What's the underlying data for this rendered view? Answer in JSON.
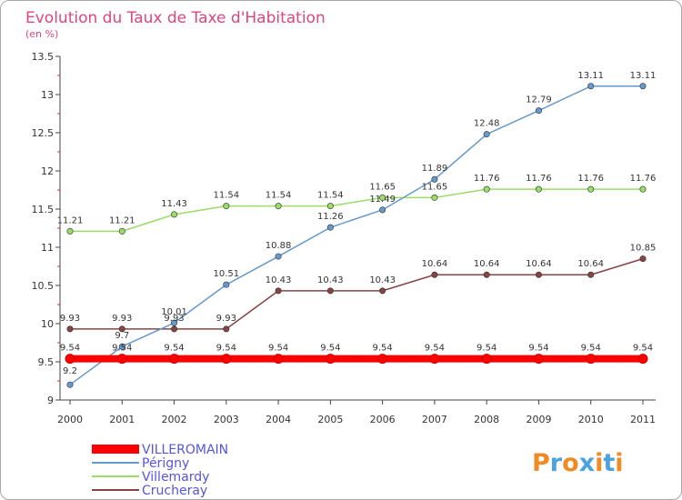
{
  "chart_data": {
    "type": "line",
    "title": "Evolution du Taux de Taxe d'Habitation",
    "subtitle": "(en %)",
    "x": [
      "2000",
      "2001",
      "2002",
      "2003",
      "2004",
      "2005",
      "2006",
      "2007",
      "2008",
      "2009",
      "2010",
      "2011"
    ],
    "ylim": [
      9,
      13.5
    ],
    "yticks": [
      "9",
      "9.5",
      "10",
      "10.5",
      "11",
      "11.5",
      "12",
      "12.5",
      "13",
      "13.5"
    ],
    "grid": false,
    "legend_position": "bottom-left",
    "series": [
      {
        "name": "VILLEROMAIN",
        "color": "#ff0000",
        "values": [
          9.54,
          9.54,
          9.54,
          9.54,
          9.54,
          9.54,
          9.54,
          9.54,
          9.54,
          9.54,
          9.54,
          9.54
        ],
        "labels": [
          "9.54",
          "9.54",
          "9.54",
          "9.54",
          "9.54",
          "9.54",
          "9.54",
          "9.54",
          "9.54",
          "9.54",
          "9.54",
          "9.54"
        ]
      },
      {
        "name": "Périgny",
        "color": "#6699cc",
        "values": [
          9.2,
          9.7,
          10.01,
          10.51,
          10.88,
          11.26,
          11.49,
          11.89,
          12.48,
          12.79,
          13.11,
          13.11
        ],
        "labels": [
          "9.2",
          "9.7",
          "10.01",
          "10.51",
          "10.88",
          "11.26",
          "11.49",
          "11.89",
          "12.48",
          "12.79",
          "13.11",
          "13.11"
        ]
      },
      {
        "name": "Villemardy",
        "color": "#99dd66",
        "values": [
          11.21,
          11.21,
          11.43,
          11.54,
          11.54,
          11.54,
          11.65,
          11.65,
          11.76,
          11.76,
          11.76,
          11.76
        ],
        "labels": [
          "11.21",
          "11.21",
          "11.43",
          "11.54",
          "11.54",
          "11.54",
          "11.65",
          "11.65",
          "11.76",
          "11.76",
          "11.76",
          "11.76"
        ]
      },
      {
        "name": "Crucheray",
        "color": "#884444",
        "values": [
          9.93,
          9.93,
          9.93,
          9.93,
          10.43,
          10.43,
          10.43,
          10.64,
          10.64,
          10.64,
          10.64,
          10.85
        ],
        "labels": [
          "9.93",
          "9.93",
          "9.93",
          "9.93",
          "10.43",
          "10.43",
          "10.43",
          "10.64",
          "10.64",
          "10.64",
          "10.64",
          "10.85"
        ]
      }
    ]
  },
  "logo": {
    "text": "Proxiti",
    "letters": [
      "P",
      "r",
      "o",
      "x",
      "i",
      "t",
      "i"
    ],
    "colors": [
      "#f08a24",
      "#4aa3df",
      "#f08a24",
      "#4aa3df",
      "#f08a24",
      "#4aa3df",
      "#f08a24"
    ]
  }
}
